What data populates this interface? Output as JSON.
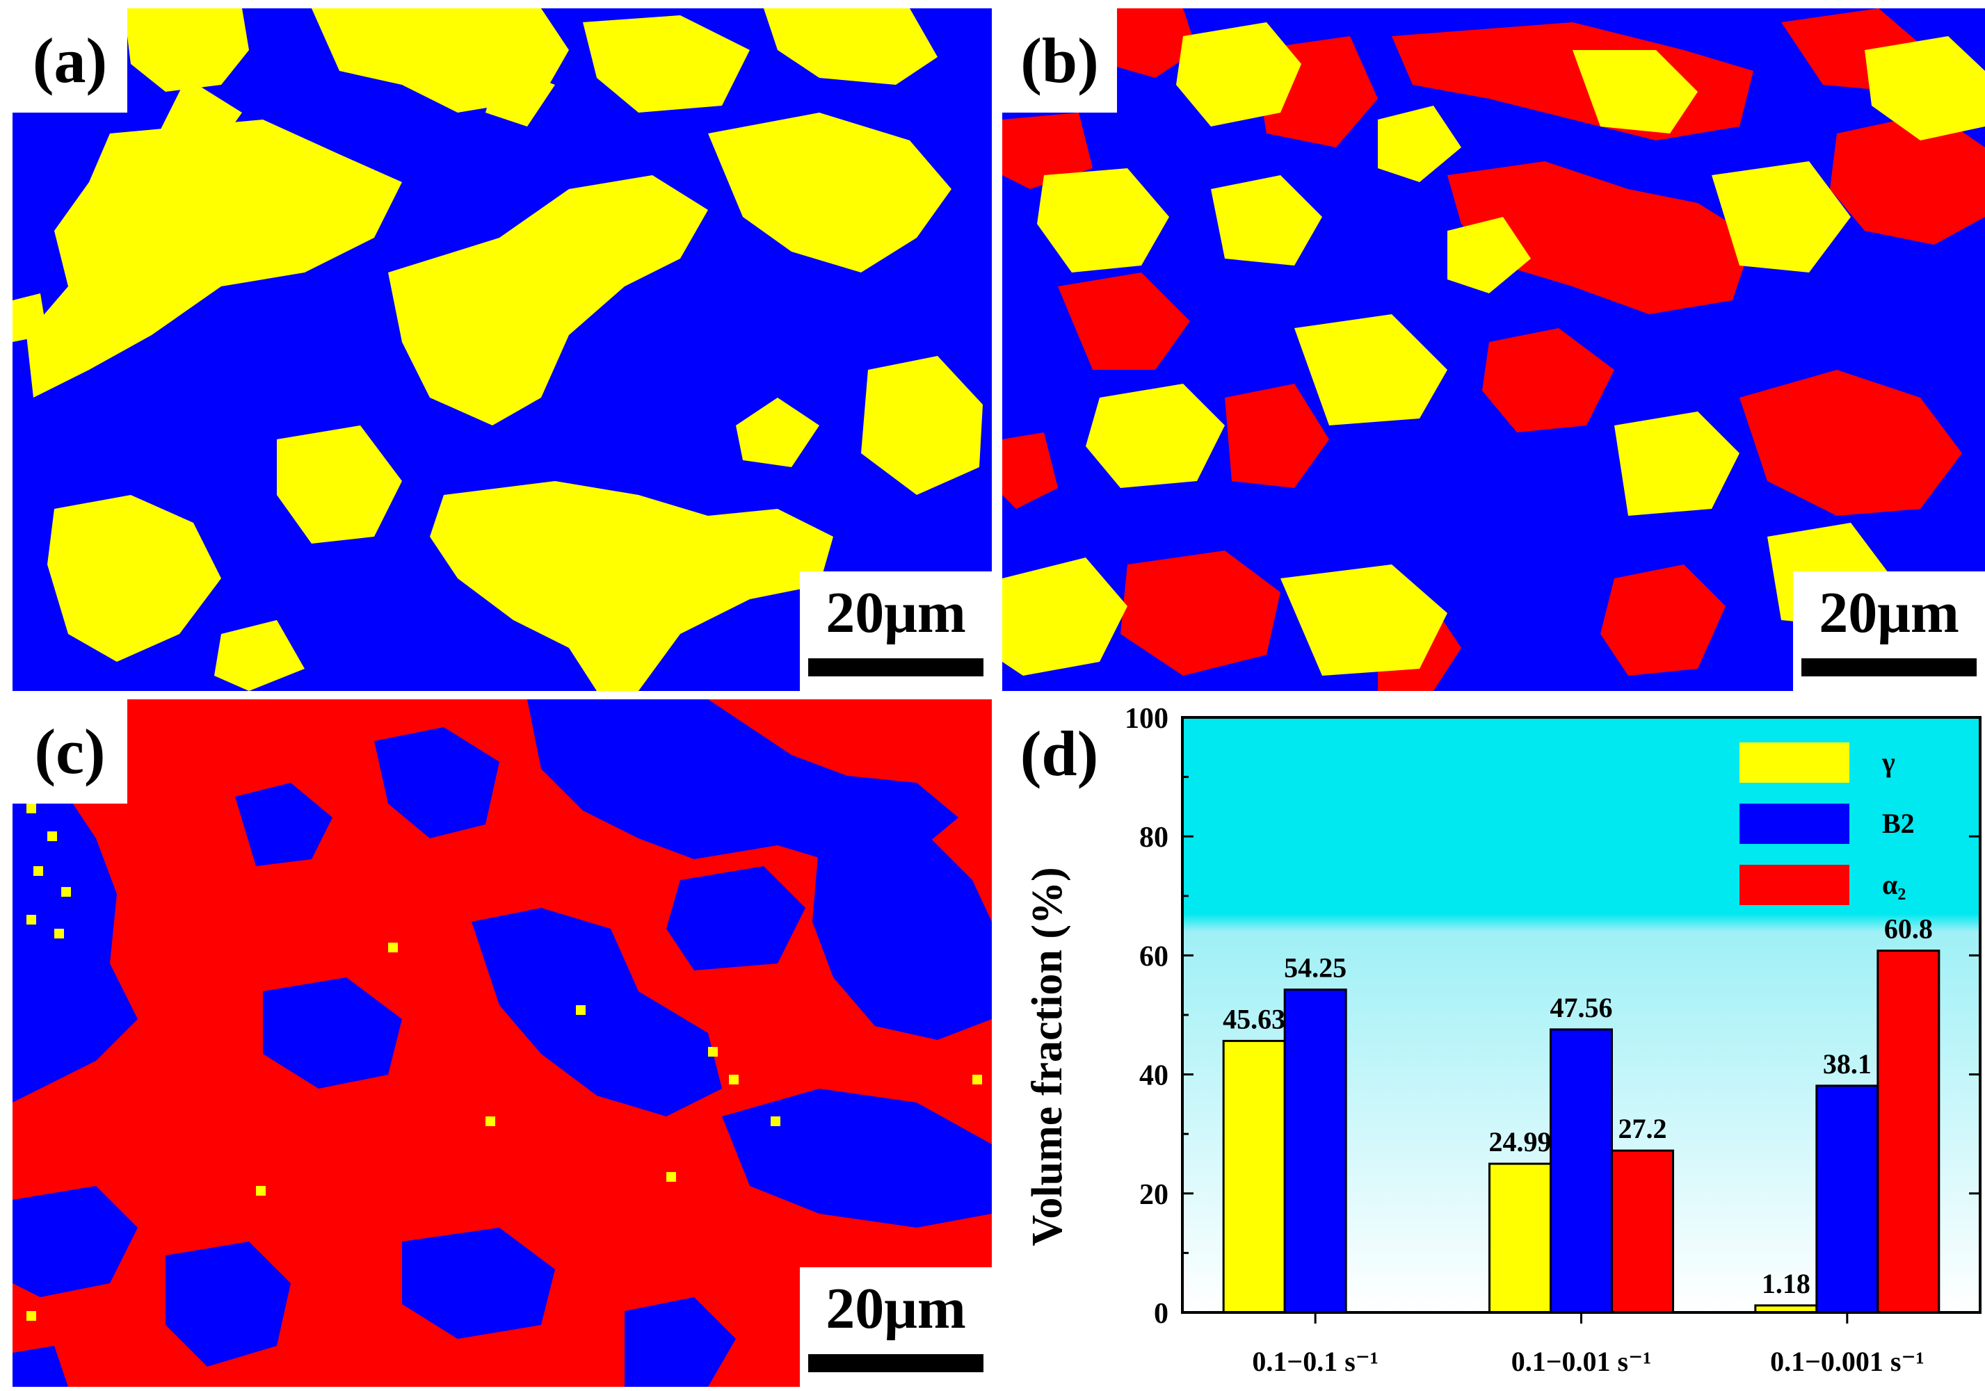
{
  "panels": {
    "a": {
      "label": "(a)",
      "scale_bar": "20μm"
    },
    "b": {
      "label": "(b)",
      "scale_bar": "20μm"
    },
    "c": {
      "label": "(c)",
      "scale_bar": "20μm"
    },
    "d": {
      "label": "(d)"
    }
  },
  "colors": {
    "gamma": "#ffff00",
    "B2": "#0000ff",
    "alpha2": "#ff0000",
    "background_top": "#00e8f0",
    "background_bottom": "#ffffff"
  },
  "chart_data": {
    "type": "bar",
    "title": "",
    "xlabel": "",
    "ylabel": "Volume fraction (%)",
    "ylim": [
      0,
      100
    ],
    "yticks": [
      0,
      20,
      40,
      60,
      80,
      100
    ],
    "categories": [
      "0.1−0.1 s⁻¹",
      "0.1−0.01 s⁻¹",
      "0.1−0.001 s⁻¹"
    ],
    "series": [
      {
        "name": "γ",
        "color": "#ffff00",
        "values": [
          45.63,
          24.99,
          1.18
        ],
        "labels": [
          "45.63",
          "24.99",
          "1.18"
        ]
      },
      {
        "name": "B2",
        "color": "#0000ff",
        "values": [
          54.25,
          47.56,
          38.1
        ],
        "labels": [
          "54.25",
          "47.56",
          "38.1"
        ]
      },
      {
        "name": "α₂",
        "color": "#ff0000",
        "values": [
          null,
          27.2,
          60.8
        ],
        "labels": [
          "",
          "27.2",
          "60.8"
        ]
      }
    ],
    "legend_position": "top-right"
  }
}
